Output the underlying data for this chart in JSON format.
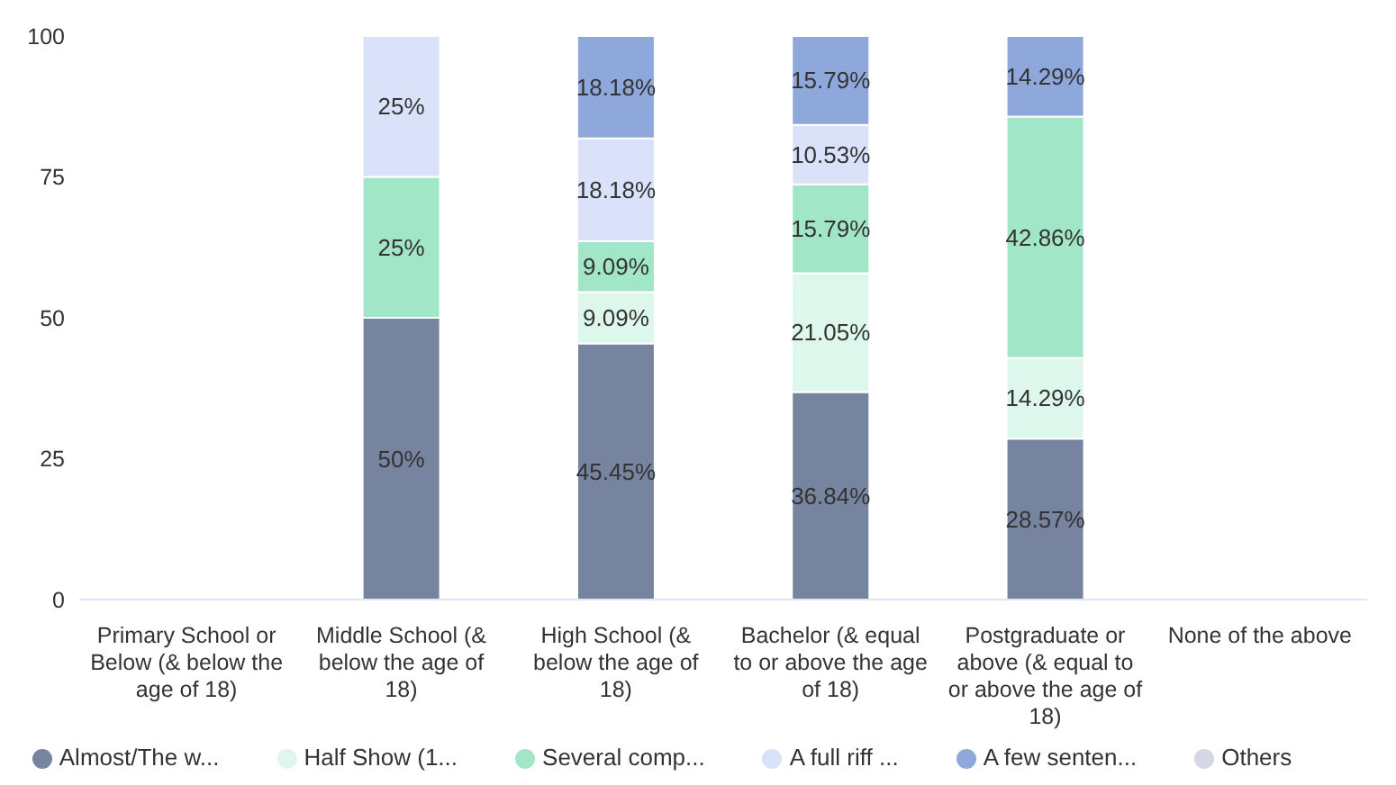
{
  "chart_data": {
    "type": "bar",
    "stacked": true,
    "categories": [
      "Primary School or Below (& below the age of 18)",
      "Middle School (& below the age of 18)",
      "High School (& below the age of 18)",
      "Bachelor (& equal to or above the age of 18)",
      "Postgraduate or above (& equal to or above the age of 18)",
      "None of the above"
    ],
    "series": [
      {
        "name": "Almost/The w...",
        "color": "#76849f",
        "values": [
          null,
          50,
          45.45,
          36.84,
          28.57,
          null
        ],
        "value_labels": [
          null,
          "50%",
          "45.45%",
          "36.84%",
          "28.57%",
          null
        ]
      },
      {
        "name": "Half Show (1...",
        "color": "#ddf7ec",
        "values": [
          null,
          null,
          9.09,
          21.05,
          14.29,
          null
        ],
        "value_labels": [
          null,
          null,
          "9.09%",
          "21.05%",
          "14.29%",
          null
        ]
      },
      {
        "name": "Several comp...",
        "color": "#a1e6c7",
        "values": [
          null,
          25,
          9.09,
          15.79,
          42.86,
          null
        ],
        "value_labels": [
          null,
          "25%",
          "9.09%",
          "15.79%",
          "42.86%",
          null
        ]
      },
      {
        "name": "A full riff ...",
        "color": "#d9e2f8",
        "values": [
          null,
          25,
          18.18,
          10.53,
          null,
          null
        ],
        "value_labels": [
          null,
          "25%",
          "18.18%",
          "10.53%",
          null,
          null
        ]
      },
      {
        "name": "A few senten...",
        "color": "#8ea8dc",
        "values": [
          null,
          null,
          18.18,
          15.79,
          14.29,
          null
        ],
        "value_labels": [
          null,
          null,
          "18.18%",
          "15.79%",
          "14.29%",
          null
        ]
      },
      {
        "name": "Others",
        "color": "#d3d7e6",
        "values": [
          null,
          null,
          null,
          null,
          null,
          null
        ]
      }
    ],
    "ylim": [
      0,
      100
    ],
    "yticks": [
      0,
      25,
      50,
      75,
      100
    ],
    "grid": false,
    "legend": "bottom"
  }
}
